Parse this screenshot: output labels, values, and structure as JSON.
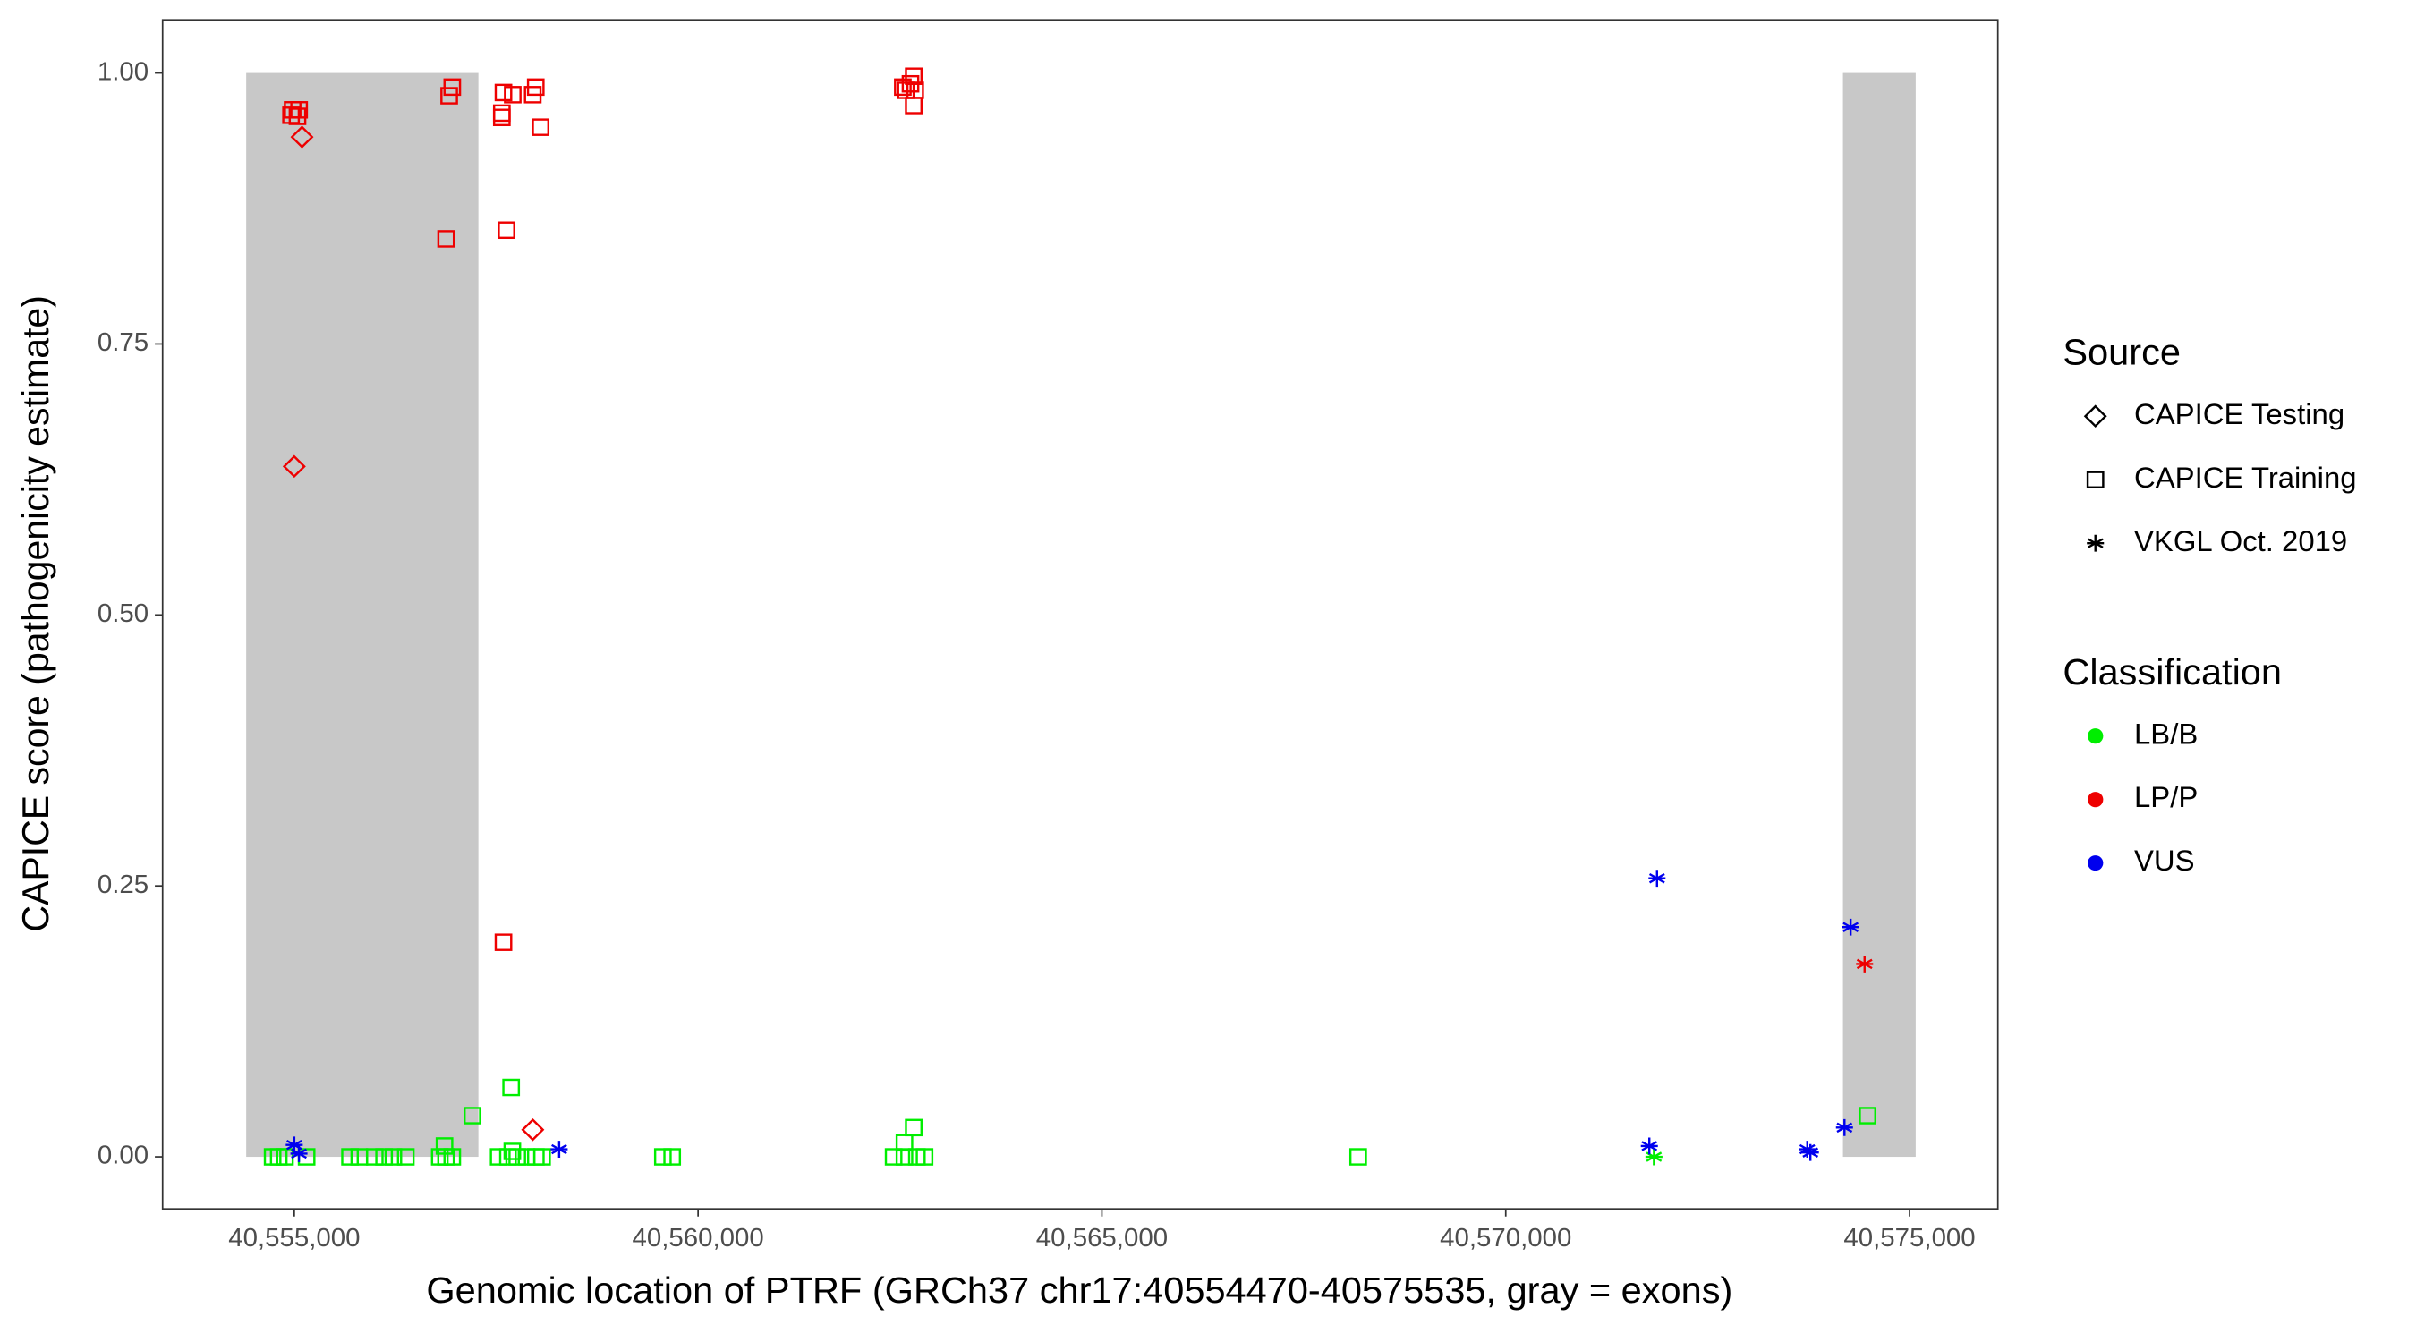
{
  "chart_data": {
    "type": "scatter",
    "xlabel": "Genomic location of PTRF (GRCh37 chr17:40554470-40575535, gray = exons)",
    "ylabel": "CAPICE score (pathogenicity estimate)",
    "xlim": [
      40553370,
      40576093
    ],
    "ylim": [
      -0.048,
      1.049
    ],
    "xticks": [
      {
        "value": 40555000,
        "label": "40,555,000"
      },
      {
        "value": 40560000,
        "label": "40,560,000"
      },
      {
        "value": 40565000,
        "label": "40,565,000"
      },
      {
        "value": 40570000,
        "label": "40,570,000"
      },
      {
        "value": 40575000,
        "label": "40,575,000"
      }
    ],
    "yticks": [
      {
        "value": 0,
        "label": "0.00"
      },
      {
        "value": 0.25,
        "label": "0.25"
      },
      {
        "value": 0.5,
        "label": "0.50"
      },
      {
        "value": 0.75,
        "label": "0.75"
      },
      {
        "value": 1,
        "label": "1.00"
      }
    ],
    "exons": [
      [
        40554405,
        40557280
      ],
      [
        40574175,
        40575076
      ]
    ],
    "exon_color": "#c8c8c8",
    "source_title": "Source",
    "sources": [
      {
        "name": "CAPICE Testing",
        "shape": "diamond"
      },
      {
        "name": "CAPICE Training",
        "shape": "square"
      },
      {
        "name": "VKGL Oct. 2019",
        "shape": "asterisk"
      }
    ],
    "classification_title": "Classification",
    "classifications": [
      {
        "name": "LB/B",
        "color": "#00ee00"
      },
      {
        "name": "LP/P",
        "color": "#ee0000"
      },
      {
        "name": "VUS",
        "color": "#0000ee"
      }
    ],
    "series": [
      {
        "source": "CAPICE Training",
        "classification": "LB/B",
        "x": [
          40554732,
          40554808,
          40554885,
          40555153,
          40555690,
          40555805,
          40555997,
          40556112,
          40556227,
          40556381,
          40556802,
          40556879,
          40556956,
          40557531,
          40557646,
          40557761,
          40557876,
          40557991,
          40558068,
          40559564,
          40559679,
          40562421,
          40562555,
          40562709,
          40562804,
          40557205,
          40557685,
          40556860,
          40557700,
          40562670,
          40562555,
          40574480,
          40568173
        ],
        "y": [
          0,
          0,
          0,
          0,
          0,
          0,
          0,
          0,
          0,
          0,
          0,
          0,
          0,
          0,
          0,
          0,
          0,
          0,
          0,
          0,
          0,
          0,
          0,
          0,
          0,
          0.038,
          0.064,
          0.01,
          0.005,
          0.027,
          0.013,
          0.038,
          0
        ]
      },
      {
        "source": "VKGL Oct. 2019",
        "classification": "LB/B",
        "x": [
          40571835
        ],
        "y": [
          0
        ]
      },
      {
        "source": "CAPICE Testing",
        "classification": "LP/P",
        "x": [
          40555000,
          40555096,
          40557953
        ],
        "y": [
          0.637,
          0.941,
          0.025
        ]
      },
      {
        "source": "CAPICE Training",
        "classification": "LP/P",
        "x": [
          40554980,
          40555060,
          40555040,
          40554960,
          40556956,
          40556918,
          40556880,
          40557570,
          40557570,
          40557590,
          40557705,
          40557628,
          40557990,
          40557953,
          40558050,
          40557590,
          40562535,
          40562670,
          40562630,
          40562573,
          40562688,
          40562670
        ],
        "y": [
          0.966,
          0.966,
          0.96,
          0.961,
          0.987,
          0.979,
          0.847,
          0.959,
          0.963,
          0.982,
          0.98,
          0.855,
          0.987,
          0.98,
          0.95,
          0.198,
          0.987,
          0.997,
          0.99,
          0.984,
          0.984,
          0.97
        ]
      },
      {
        "source": "VKGL Oct. 2019",
        "classification": "LP/P",
        "x": [
          40574443
        ],
        "y": [
          0.178
        ]
      },
      {
        "source": "VKGL Oct. 2019",
        "classification": "VUS",
        "x": [
          40555000,
          40555058,
          40558280,
          40571778,
          40571873,
          40573734,
          40573772,
          40574194,
          40574270
        ],
        "y": [
          0.011,
          0.003,
          0.007,
          0.01,
          0.257,
          0.007,
          0.004,
          0.027,
          0.212
        ]
      }
    ]
  }
}
